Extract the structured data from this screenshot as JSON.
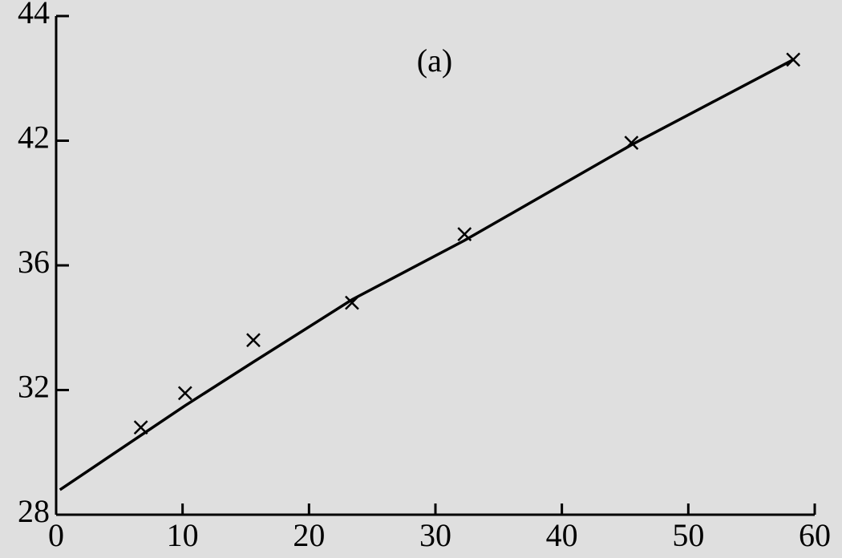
{
  "chart_data": {
    "type": "scatter",
    "annotation": "(a)",
    "xlim": [
      0,
      60
    ],
    "xticks": [
      0,
      10,
      20,
      30,
      40,
      50,
      60
    ],
    "ylim": [
      28,
      44
    ],
    "yticks": [
      28,
      32,
      36,
      42,
      44
    ],
    "series": [
      {
        "kind": "markers",
        "color": "#000000",
        "x": [
          6.7,
          10.2,
          15.6,
          23.4,
          32.3,
          45.5,
          58.3
        ],
        "values": [
          30.8,
          31.9,
          33.6,
          34.8,
          37.5,
          41.9,
          43.3
        ]
      },
      {
        "kind": "line",
        "color": "#000000",
        "x": [
          0.3,
          10.2,
          15.6,
          23.4,
          32.3,
          45.5,
          58.3
        ],
        "values": [
          28.8,
          31.5,
          32.9,
          34.9,
          37.2,
          41.8,
          43.3
        ]
      }
    ]
  }
}
